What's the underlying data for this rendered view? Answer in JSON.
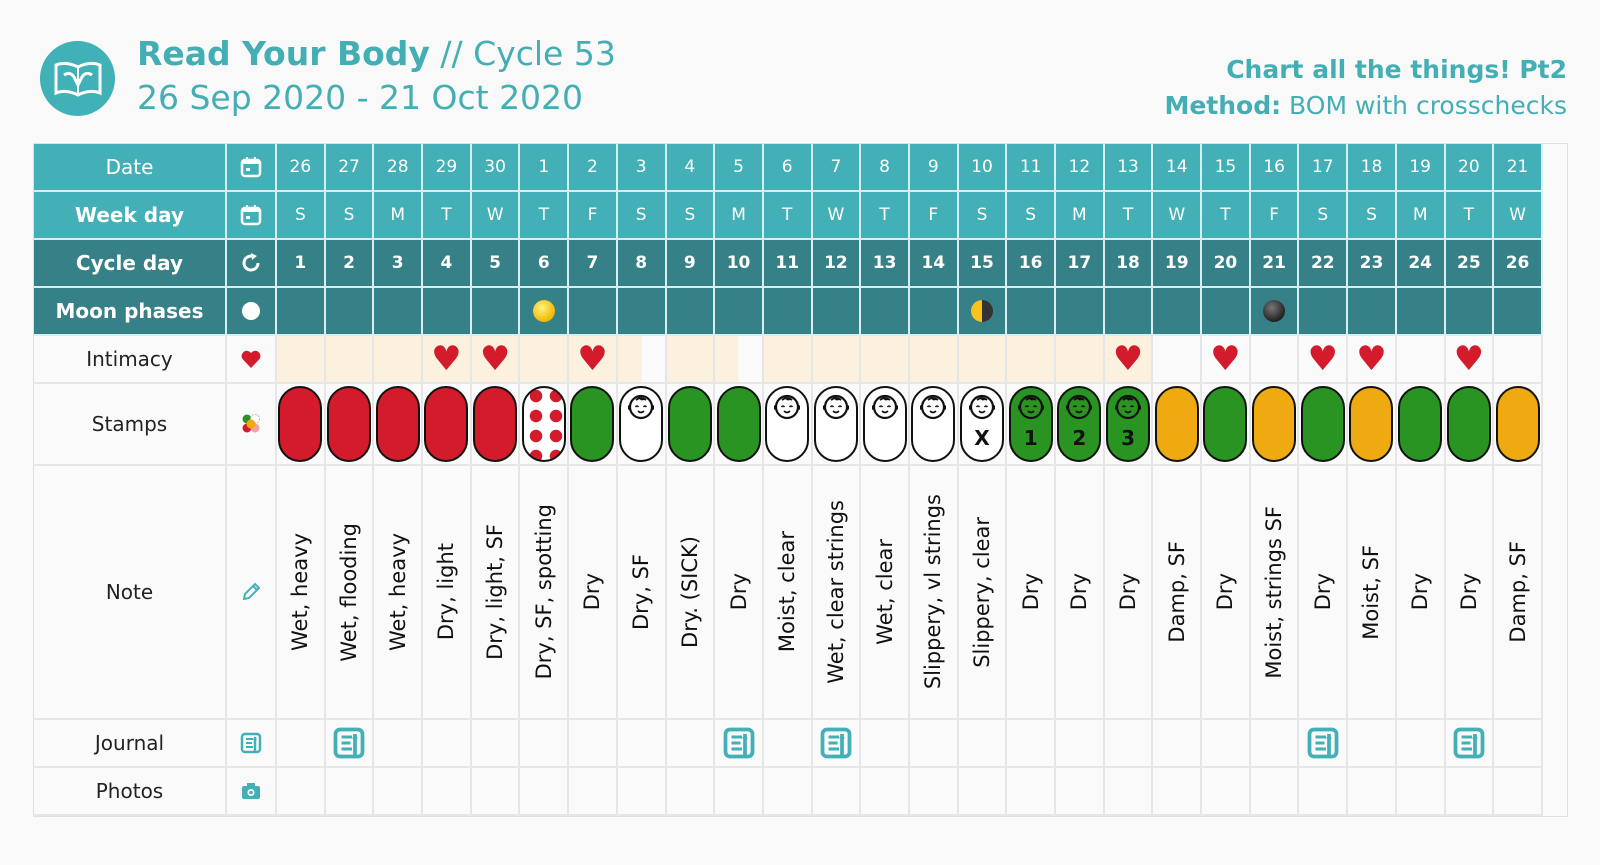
{
  "header": {
    "brand": "Read Your Body",
    "cycle": " // Cycle 53",
    "date_range": "26 Sep 2020 - 21 Oct 2020",
    "subtitle": "Chart all the things! Pt2",
    "method_label": "Method:",
    "method_value": " BOM with crosschecks",
    "logo_icon": "open-book-uterus-icon"
  },
  "colors": {
    "accent": "#43b0b8",
    "dark_teal": "#368087",
    "red": "#d41b2c",
    "green": "#2a9423",
    "yellow": "#eeaa10",
    "beige": "#fcf0de"
  },
  "rows": {
    "date": {
      "label": "Date",
      "icon": "calendar-icon"
    },
    "weekday": {
      "label": "Week day",
      "icon": "calendar-icon"
    },
    "cycle_day": {
      "label": "Cycle day",
      "icon": "cycle-refresh-icon"
    },
    "moon": {
      "label": "Moon phases",
      "icon": "moon-icon"
    },
    "intimacy": {
      "label": "Intimacy",
      "icon": "heart-icon"
    },
    "stamps": {
      "label": "Stamps",
      "icon": "stamps-dots-icon"
    },
    "note": {
      "label": "Note",
      "icon": "pencil-icon"
    },
    "journal": {
      "label": "Journal",
      "icon": "journal-icon"
    },
    "photos": {
      "label": "Photos",
      "icon": "camera-icon"
    }
  },
  "days": [
    {
      "date": "26",
      "wd": "S",
      "cd": "1",
      "moon": "",
      "intim": false,
      "bg": "beige",
      "stamp": "red",
      "sn": "",
      "note": "Wet, heavy",
      "journal": false
    },
    {
      "date": "27",
      "wd": "S",
      "cd": "2",
      "moon": "",
      "intim": false,
      "bg": "beige",
      "stamp": "red",
      "sn": "",
      "note": "Wet, flooding",
      "journal": true
    },
    {
      "date": "28",
      "wd": "M",
      "cd": "3",
      "moon": "",
      "intim": false,
      "bg": "beige",
      "stamp": "red",
      "sn": "",
      "note": "Wet, heavy",
      "journal": false
    },
    {
      "date": "29",
      "wd": "T",
      "cd": "4",
      "moon": "",
      "intim": true,
      "bg": "beige",
      "stamp": "red",
      "sn": "",
      "note": "Dry, light",
      "journal": false
    },
    {
      "date": "30",
      "wd": "W",
      "cd": "5",
      "moon": "",
      "intim": true,
      "bg": "beige",
      "stamp": "red",
      "sn": "",
      "note": "Dry, light, SF",
      "journal": false
    },
    {
      "date": "1",
      "wd": "T",
      "cd": "6",
      "moon": "full",
      "intim": false,
      "bg": "beige",
      "stamp": "dots",
      "sn": "",
      "note": "Dry, SF, spotting",
      "journal": false
    },
    {
      "date": "2",
      "wd": "F",
      "cd": "7",
      "moon": "",
      "intim": true,
      "bg": "beige",
      "stamp": "green",
      "sn": "",
      "note": "Dry",
      "journal": false
    },
    {
      "date": "3",
      "wd": "S",
      "cd": "8",
      "moon": "",
      "intim": false,
      "bg": "half",
      "stamp": "white-baby",
      "sn": "",
      "note": "Dry, SF",
      "journal": false
    },
    {
      "date": "4",
      "wd": "S",
      "cd": "9",
      "moon": "",
      "intim": false,
      "bg": "beige",
      "stamp": "green",
      "sn": "",
      "note": "Dry. (SICK)",
      "journal": false
    },
    {
      "date": "5",
      "wd": "M",
      "cd": "10",
      "moon": "",
      "intim": false,
      "bg": "half",
      "stamp": "green",
      "sn": "",
      "note": "Dry",
      "journal": true
    },
    {
      "date": "6",
      "wd": "T",
      "cd": "11",
      "moon": "",
      "intim": false,
      "bg": "beige",
      "stamp": "white-baby",
      "sn": "",
      "note": "Moist, clear",
      "journal": false
    },
    {
      "date": "7",
      "wd": "W",
      "cd": "12",
      "moon": "",
      "intim": false,
      "bg": "beige",
      "stamp": "white-baby",
      "sn": "",
      "note": "Wet, clear strings",
      "journal": true
    },
    {
      "date": "8",
      "wd": "T",
      "cd": "13",
      "moon": "",
      "intim": false,
      "bg": "beige",
      "stamp": "white-baby",
      "sn": "",
      "note": "Wet, clear",
      "journal": false
    },
    {
      "date": "9",
      "wd": "F",
      "cd": "14",
      "moon": "",
      "intim": false,
      "bg": "beige",
      "stamp": "white-baby",
      "sn": "",
      "note": "Slippery, vl strings",
      "journal": false
    },
    {
      "date": "10",
      "wd": "S",
      "cd": "15",
      "moon": "half",
      "intim": false,
      "bg": "beige",
      "stamp": "white-baby",
      "sn": "X",
      "note": "Slippery, clear",
      "journal": false
    },
    {
      "date": "11",
      "wd": "S",
      "cd": "16",
      "moon": "",
      "intim": false,
      "bg": "beige",
      "stamp": "green-baby",
      "sn": "1",
      "note": "Dry",
      "journal": false
    },
    {
      "date": "12",
      "wd": "M",
      "cd": "17",
      "moon": "",
      "intim": false,
      "bg": "beige",
      "stamp": "green-baby",
      "sn": "2",
      "note": "Dry",
      "journal": false
    },
    {
      "date": "13",
      "wd": "T",
      "cd": "18",
      "moon": "",
      "intim": true,
      "bg": "beige",
      "stamp": "green-baby",
      "sn": "3",
      "note": "Dry",
      "journal": false
    },
    {
      "date": "14",
      "wd": "W",
      "cd": "19",
      "moon": "",
      "intim": false,
      "bg": "",
      "stamp": "yellow",
      "sn": "",
      "note": "Damp, SF",
      "journal": false
    },
    {
      "date": "15",
      "wd": "T",
      "cd": "20",
      "moon": "",
      "intim": true,
      "bg": "",
      "stamp": "green",
      "sn": "",
      "note": "Dry",
      "journal": false
    },
    {
      "date": "16",
      "wd": "F",
      "cd": "21",
      "moon": "new",
      "intim": false,
      "bg": "",
      "stamp": "yellow",
      "sn": "",
      "note": "Moist, strings SF",
      "journal": false
    },
    {
      "date": "17",
      "wd": "S",
      "cd": "22",
      "moon": "",
      "intim": true,
      "bg": "",
      "stamp": "green",
      "sn": "",
      "note": "Dry",
      "journal": true
    },
    {
      "date": "18",
      "wd": "S",
      "cd": "23",
      "moon": "",
      "intim": true,
      "bg": "",
      "stamp": "yellow",
      "sn": "",
      "note": "Moist, SF",
      "journal": false
    },
    {
      "date": "19",
      "wd": "M",
      "cd": "24",
      "moon": "",
      "intim": false,
      "bg": "",
      "stamp": "green",
      "sn": "",
      "note": "Dry",
      "journal": false
    },
    {
      "date": "20",
      "wd": "T",
      "cd": "25",
      "moon": "",
      "intim": true,
      "bg": "",
      "stamp": "green",
      "sn": "",
      "note": "Dry",
      "journal": true
    },
    {
      "date": "21",
      "wd": "W",
      "cd": "26",
      "moon": "",
      "intim": false,
      "bg": "",
      "stamp": "yellow",
      "sn": "",
      "note": "Damp, SF",
      "journal": false
    }
  ]
}
